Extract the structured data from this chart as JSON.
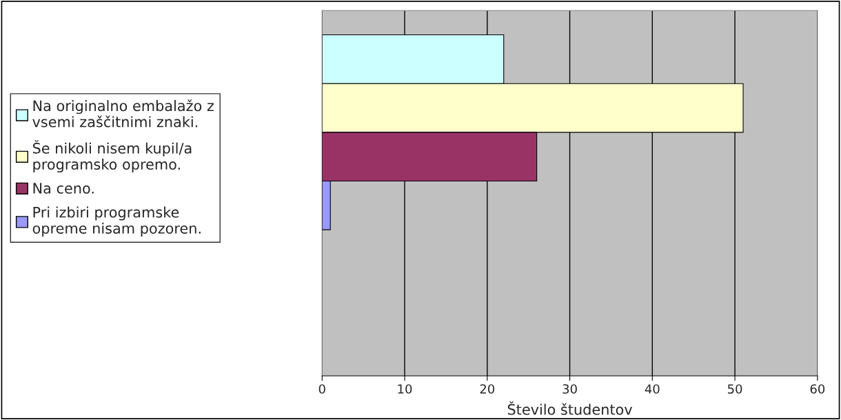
{
  "chart_data": {
    "type": "bar",
    "orientation": "horizontal",
    "categories": [
      null
    ],
    "series": [
      {
        "name": "Na originalno embalažo z vsemi zaščitnimi znaki.",
        "color": "#ccffff",
        "values": [
          22
        ]
      },
      {
        "name": "Še nikoli nisem kupil/a programsko opremo.",
        "color": "#ffffcc",
        "values": [
          51
        ]
      },
      {
        "name": "Na ceno.",
        "color": "#993366",
        "values": [
          26
        ]
      },
      {
        "name": "Pri izbiri programske opreme nisam pozoren.",
        "color": "#9999ff",
        "values": [
          1
        ]
      }
    ],
    "xlabel": "Število študentov",
    "xlim": [
      0,
      60
    ],
    "xticks": [
      0,
      10,
      20,
      30,
      40,
      50,
      60
    ],
    "grid": "x",
    "legend": "left",
    "tick_labels": "x"
  }
}
